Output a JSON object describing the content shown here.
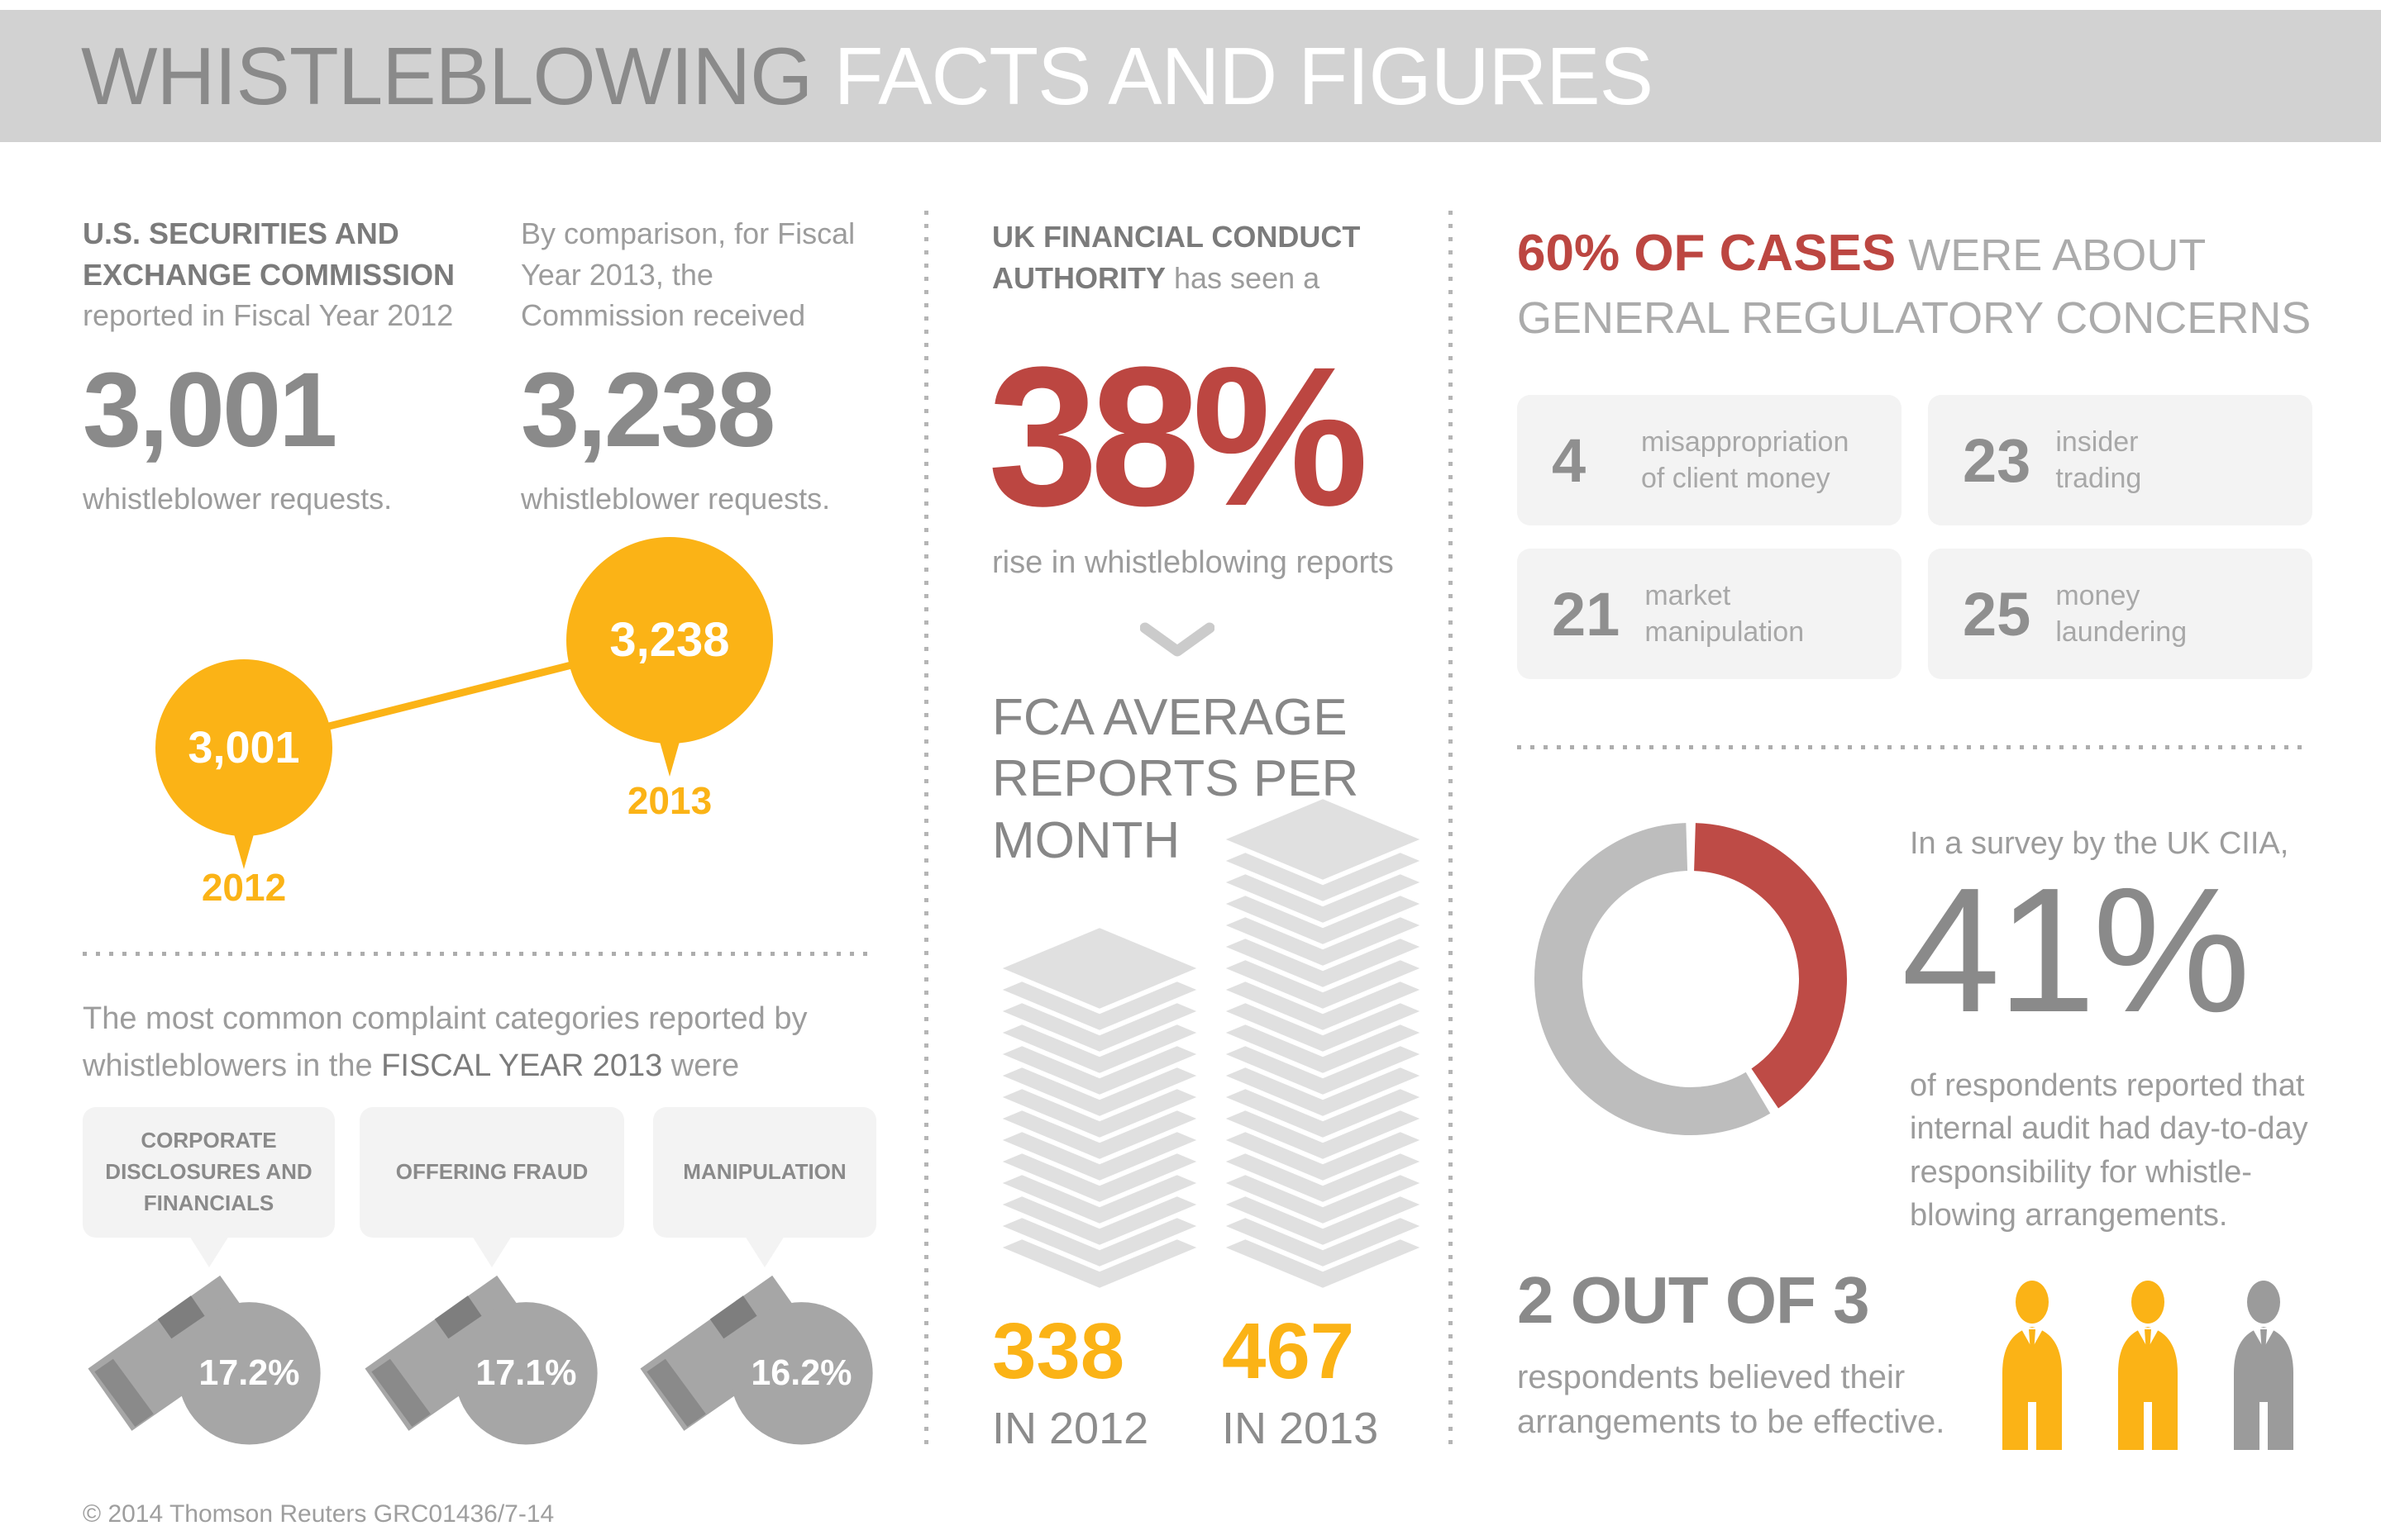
{
  "header": {
    "title_strong": "WHISTLEBLOWING",
    "title_light": " FACTS AND FIGURES"
  },
  "colors": {
    "yellow": "#FBB316",
    "red": "#BC4641",
    "donut_red": "#BE4B46",
    "donut_gray": "#BDBDBD",
    "heading_gray": "#7B7B7B",
    "light_gray": "#9C9C9C",
    "number_gray": "#8A8A8A"
  },
  "sec": {
    "block1": {
      "heading": "U.S. SECURITIES AND\nEXCHANGE COMMISSION",
      "subheading": "reported in Fiscal Year 2012",
      "value": "3,001",
      "caption": "whistleblower requests."
    },
    "block2": {
      "lead": "By comparison, for Fiscal\nYear 2013, the\nCommission received",
      "value": "3,238",
      "caption": "whistleblower requests."
    },
    "bubbles": [
      {
        "value": "3,001",
        "year": "2012"
      },
      {
        "value": "3,238",
        "year": "2013"
      }
    ]
  },
  "complaints": {
    "intro_pre": "The most common complaint categories reported by\nwhistleblowers in the ",
    "intro_strong": "FISCAL YEAR 2013",
    "intro_post": " were",
    "items": [
      {
        "label": "CORPORATE\nDISCLOSURES AND\nFINANCIALS",
        "pct": "17.2%"
      },
      {
        "label": "OFFERING FRAUD",
        "pct": "17.1%"
      },
      {
        "label": "MANIPULATION",
        "pct": "16.2%"
      }
    ]
  },
  "fca": {
    "heading_strong": "UK FINANCIAL CONDUCT\nAUTHORITY",
    "heading_light": " has seen a",
    "value": "38%",
    "caption": "rise in whistleblowing reports",
    "subheading": "FCA AVERAGE\nREPORTS PER\nMONTH",
    "stacks": [
      {
        "value": "338",
        "label": "IN 2012",
        "sheets": 14
      },
      {
        "value": "467",
        "label": "IN 2013",
        "sheets": 20
      }
    ]
  },
  "cases": {
    "heading_strong": "60% OF CASES",
    "heading_light": " WERE ABOUT",
    "heading_line2": "GENERAL REGULATORY CONCERNS",
    "stats": [
      {
        "value": "4",
        "label": "misappropriation\nof client money"
      },
      {
        "value": "23",
        "label": "insider\ntrading"
      },
      {
        "value": "21",
        "label": "market\nmanipulation"
      },
      {
        "value": "25",
        "label": "money\nlaundering"
      }
    ]
  },
  "survey": {
    "intro": "In a survey by the UK CIIA,",
    "value": "41%",
    "pct": 41,
    "description": "of respondents reported that\ninternal audit had day-to-day\nresponsibility for whistle-\nblowing arrangements."
  },
  "effective": {
    "heading": "2 OUT OF 3",
    "description": "respondents believed their\narrangements to be effective.",
    "people": [
      {
        "color": "#FBB316"
      },
      {
        "color": "#FBB316"
      },
      {
        "color": "#9B9B9B"
      }
    ]
  },
  "footer": {
    "copyright": "© 2014 Thomson Reuters GRC01436/7-14"
  },
  "chart_data": [
    {
      "type": "scatter",
      "title": "U.S. Securities and Exchange Commission whistleblower requests",
      "x": [
        "2012",
        "2013"
      ],
      "y": [
        3001,
        3238
      ],
      "ylabel": "whistleblower requests",
      "legend_position": "none"
    },
    {
      "type": "bar",
      "title": "FCA average reports per month",
      "categories": [
        "2012",
        "2013"
      ],
      "values": [
        338,
        467
      ]
    },
    {
      "type": "bar",
      "title": "Most common complaint categories reported by whistleblowers in fiscal year 2013",
      "categories": [
        "Corporate disclosures and financials",
        "Offering fraud",
        "Manipulation"
      ],
      "values": [
        17.2,
        17.1,
        16.2
      ],
      "unit": "percent"
    },
    {
      "type": "bar",
      "title": "60% of cases were about general regulatory concerns",
      "categories": [
        "misappropriation of client money",
        "insider trading",
        "market manipulation",
        "money laundering"
      ],
      "values": [
        4,
        23,
        21,
        25
      ]
    },
    {
      "type": "pie",
      "title": "UK CIIA survey: internal audit had day-to-day responsibility for whistleblowing arrangements",
      "categories": [
        "responsible",
        "other"
      ],
      "values": [
        41,
        59
      ],
      "unit": "percent"
    },
    {
      "type": "pie",
      "title": "Respondents who believed their arrangements to be effective",
      "categories": [
        "believed effective",
        "did not"
      ],
      "values": [
        2,
        1
      ],
      "unit": "out of 3"
    }
  ]
}
